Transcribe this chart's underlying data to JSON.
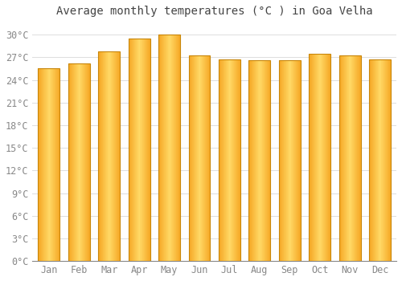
{
  "title": "Average monthly temperatures (°C ) in Goa Velha",
  "months": [
    "Jan",
    "Feb",
    "Mar",
    "Apr",
    "May",
    "Jun",
    "Jul",
    "Aug",
    "Sep",
    "Oct",
    "Nov",
    "Dec"
  ],
  "temperatures": [
    25.5,
    26.2,
    27.8,
    29.5,
    30.0,
    27.2,
    26.7,
    26.6,
    26.6,
    27.5,
    27.2,
    26.7
  ],
  "bar_color_light": "#FFD966",
  "bar_color_dark": "#F5A623",
  "bar_edge_color": "#C8860A",
  "ylim": [
    0,
    31.5
  ],
  "yticks": [
    0,
    3,
    6,
    9,
    12,
    15,
    18,
    21,
    24,
    27,
    30
  ],
  "ytick_labels": [
    "0°C",
    "3°C",
    "6°C",
    "9°C",
    "12°C",
    "15°C",
    "18°C",
    "21°C",
    "24°C",
    "27°C",
    "30°C"
  ],
  "background_color": "#FFFFFF",
  "grid_color": "#DDDDDD",
  "title_fontsize": 10,
  "tick_fontsize": 8.5,
  "bar_width": 0.72,
  "tick_color": "#888888"
}
